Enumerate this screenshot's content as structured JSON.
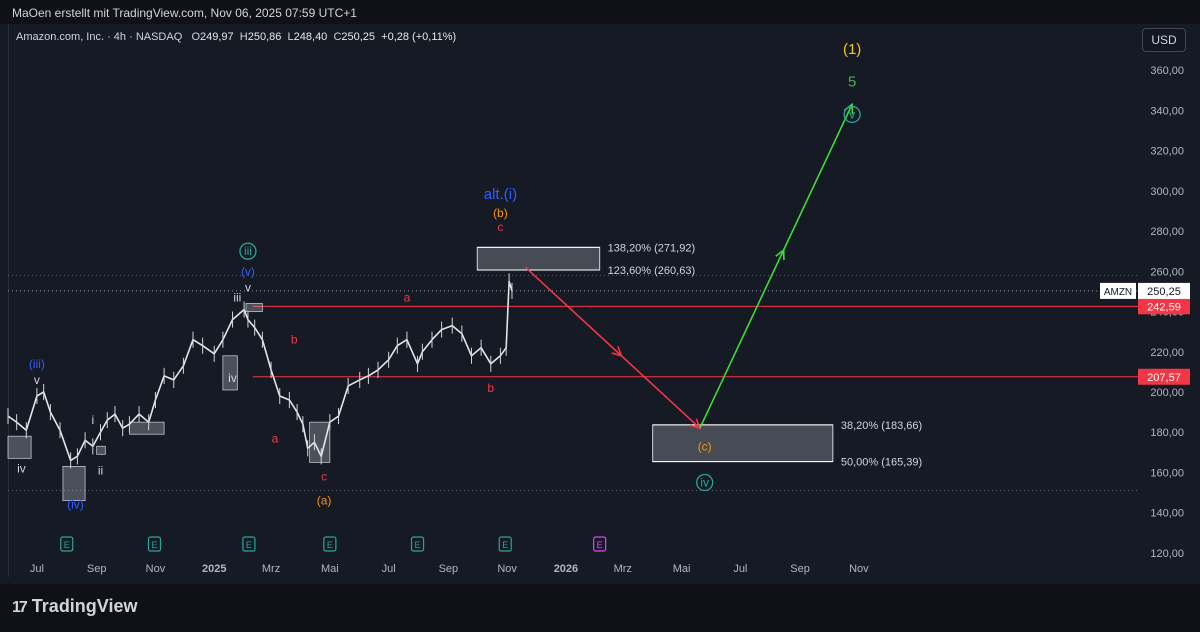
{
  "header": {
    "credit": "MaOen erstellt mit TradingView.com, Nov 06, 2025 07:59 UTC+1"
  },
  "symbol": {
    "name": "Amazon.com, Inc. · 4h · NASDAQ",
    "o_label": "O",
    "o": "249,97",
    "h_label": "H",
    "h": "250,86",
    "l_label": "L",
    "l": "248,40",
    "c_label": "C",
    "c": "250,25",
    "change": "+0,28 (+0,11%)"
  },
  "currency_button": "USD",
  "brand": {
    "mark": "17",
    "name": "TradingView"
  },
  "colors": {
    "background": "#161a25",
    "red": "#f23645",
    "green": "#3ddc37",
    "blue": "#2962ff",
    "cyan": "#26a69a",
    "orange": "#f7931a",
    "yellow": "#f5c518",
    "magenta": "#e040fb"
  },
  "chart_data": {
    "type": "line",
    "x_axis": {
      "tick_labels": [
        "Jul",
        "Sep",
        "Nov",
        "2025",
        "Mrz",
        "Mai",
        "Jul",
        "Sep",
        "Nov",
        "2026",
        "Mrz",
        "Mai",
        "Jul",
        "Sep",
        "Nov"
      ]
    },
    "y_axis": {
      "ylim": [
        110,
        375
      ],
      "tick_labels": [
        "120,00",
        "140,00",
        "160,00",
        "180,00",
        "200,00",
        "220,00",
        "240,00",
        "260,00",
        "280,00",
        "300,00",
        "320,00",
        "340,00",
        "360,00"
      ]
    },
    "price_series": {
      "x": [
        "2024-06-01",
        "2024-06-10",
        "2024-06-20",
        "2024-07-01",
        "2024-07-08",
        "2024-07-15",
        "2024-07-25",
        "2024-08-05",
        "2024-08-12",
        "2024-08-20",
        "2024-08-28",
        "2024-09-05",
        "2024-09-12",
        "2024-09-20",
        "2024-09-28",
        "2024-10-05",
        "2024-10-15",
        "2024-10-25",
        "2024-11-01",
        "2024-11-10",
        "2024-11-20",
        "2024-11-30",
        "2024-12-10",
        "2024-12-20",
        "2025-01-01",
        "2025-01-10",
        "2025-01-20",
        "2025-02-01",
        "2025-02-05",
        "2025-02-12",
        "2025-02-20",
        "2025-03-01",
        "2025-03-10",
        "2025-03-20",
        "2025-03-28",
        "2025-04-03",
        "2025-04-08",
        "2025-04-15",
        "2025-04-22",
        "2025-05-01",
        "2025-05-10",
        "2025-05-20",
        "2025-06-01",
        "2025-06-10",
        "2025-06-20",
        "2025-07-01",
        "2025-07-10",
        "2025-07-20",
        "2025-07-31",
        "2025-08-05",
        "2025-08-15",
        "2025-08-25",
        "2025-09-05",
        "2025-09-15",
        "2025-09-25",
        "2025-10-05",
        "2025-10-15",
        "2025-10-25",
        "2025-10-31",
        "2025-11-03",
        "2025-11-06"
      ],
      "y": [
        188,
        185,
        181,
        198,
        200,
        190,
        181,
        166,
        168,
        176,
        173,
        180,
        186,
        189,
        182,
        184,
        189,
        185,
        196,
        208,
        206,
        213,
        226,
        223,
        219,
        226,
        236,
        241,
        236,
        232,
        226,
        211,
        198,
        196,
        190,
        184,
        172,
        175,
        168,
        185,
        188,
        203,
        206,
        208,
        211,
        216,
        223,
        226,
        214,
        220,
        226,
        231,
        233,
        229,
        218,
        222,
        214,
        218,
        222,
        255,
        250.25
      ]
    },
    "price_label": "AMZN",
    "last_price": "250,25",
    "levels": [
      {
        "value": 242.59,
        "label": "242,59",
        "color": "#f23645"
      },
      {
        "value": 207.57,
        "label": "207,57",
        "color": "#f23645"
      }
    ],
    "fib_zones": [
      {
        "top": 271.92,
        "bottom": 260.63,
        "top_label": "138,20% (271,92)",
        "bottom_label": "123,60% (260,63)"
      },
      {
        "top": 183.66,
        "bottom": 165.39,
        "top_label": "38,20% (183,66)",
        "bottom_label": "50,00% (165,39)"
      }
    ],
    "projection": {
      "down": {
        "from": [
          "2025-11-20",
          262
        ],
        "to": [
          "2026-05-20",
          182
        ],
        "color": "#f23645"
      },
      "up": {
        "from": [
          "2026-05-20",
          182
        ],
        "to": [
          "2026-10-25",
          343
        ],
        "color": "#3ddc37"
      }
    },
    "wave_labels": [
      {
        "text": "(1)",
        "x": "2026-10-25",
        "y": 368,
        "color": "#f5c518"
      },
      {
        "text": "5",
        "x": "2026-10-25",
        "y": 352,
        "color": "#4caf50"
      },
      {
        "text": "v",
        "x": "2026-10-25",
        "y": 336,
        "color": "#26a69a"
      },
      {
        "text": "alt.(i)",
        "x": "2025-10-25",
        "y": 296,
        "color": "#2962ff"
      },
      {
        "text": "(b)",
        "x": "2025-10-25",
        "y": 287,
        "color": "#f7931a"
      },
      {
        "text": "c",
        "x": "2025-10-25",
        "y": 280,
        "color": "#f23645"
      },
      {
        "text": "(iii)",
        "x": "2024-07-01",
        "y": 212,
        "color": "#2962ff"
      },
      {
        "text": "v",
        "x": "2024-07-01",
        "y": 204,
        "color": "#d1d4dc"
      },
      {
        "text": "iv",
        "x": "2024-06-15",
        "y": 160,
        "color": "#d1d4dc"
      },
      {
        "text": "(iv)",
        "x": "2024-08-10",
        "y": 142,
        "color": "#2962ff"
      },
      {
        "text": "i",
        "x": "2024-08-28",
        "y": 184,
        "color": "#d1d4dc"
      },
      {
        "text": "ii",
        "x": "2024-09-05",
        "y": 159,
        "color": "#d1d4dc"
      },
      {
        "text": "iii",
        "x": "2025-01-25",
        "y": 245,
        "color": "#d1d4dc"
      },
      {
        "text": "iii",
        "x": "2025-02-05",
        "y": 268,
        "color": "#26a69a"
      },
      {
        "text": "(v)",
        "x": "2025-02-05",
        "y": 258,
        "color": "#2962ff"
      },
      {
        "text": "v",
        "x": "2025-02-05",
        "y": 250,
        "color": "#d1d4dc"
      },
      {
        "text": "iv",
        "x": "2025-01-20",
        "y": 205,
        "color": "#d1d4dc"
      },
      {
        "text": "b",
        "x": "2025-03-25",
        "y": 224,
        "color": "#f23645"
      },
      {
        "text": "a",
        "x": "2025-03-05",
        "y": 175,
        "color": "#f23645"
      },
      {
        "text": "c",
        "x": "2025-04-25",
        "y": 156,
        "color": "#f23645"
      },
      {
        "text": "(a)",
        "x": "2025-04-25",
        "y": 144,
        "color": "#f7931a"
      },
      {
        "text": "a",
        "x": "2025-07-20",
        "y": 245,
        "color": "#f23645"
      },
      {
        "text": "b",
        "x": "2025-10-15",
        "y": 200,
        "color": "#f23645"
      },
      {
        "text": "(c)",
        "x": "2026-05-25",
        "y": 171,
        "color": "#f7931a"
      },
      {
        "text": "iv",
        "x": "2026-05-25",
        "y": 153,
        "color": "#26a69a"
      }
    ],
    "earnings_markers": {
      "label": "E",
      "x": [
        "2024-08-01",
        "2024-10-31",
        "2025-02-06",
        "2025-05-01",
        "2025-07-31",
        "2025-10-30"
      ],
      "future_x": "2026-02-05"
    }
  }
}
